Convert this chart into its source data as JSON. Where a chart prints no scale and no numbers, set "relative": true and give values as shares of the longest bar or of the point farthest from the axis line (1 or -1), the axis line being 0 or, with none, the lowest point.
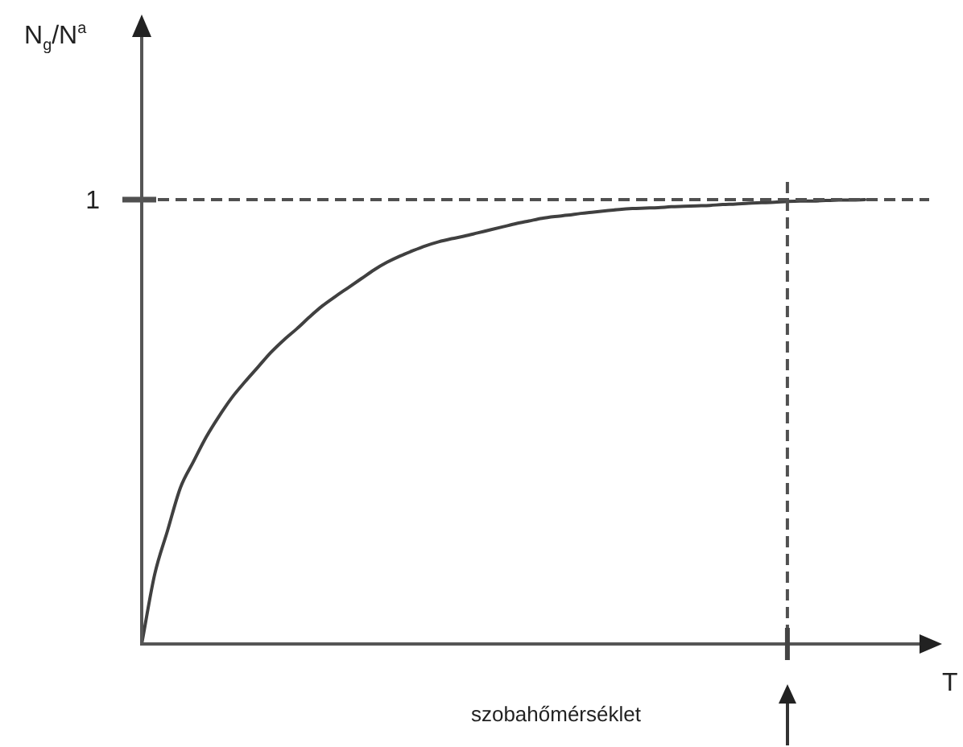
{
  "chart_data": {
    "type": "line",
    "relative": true,
    "xlabel": "T",
    "color": "#404040",
    "marker": "none",
    "line_style": "solid",
    "annotations": [
      "N$_{g}$/N$^{a}$",
      "szobahőmérséklet"
    ],
    "categories": [
      null,
      null,
      null,
      null,
      null,
      null,
      null,
      null,
      null,
      null,
      null,
      null,
      null,
      null,
      null,
      null,
      null,
      null,
      null,
      null,
      null,
      null,
      null,
      null,
      null,
      null,
      null,
      null,
      null,
      null,
      null,
      null,
      null,
      null,
      null,
      null,
      null,
      null,
      null,
      null,
      null,
      null,
      null,
      null,
      null,
      null,
      null,
      null,
      null,
      null,
      null,
      null,
      null,
      null,
      null,
      null,
      null
    ],
    "values": [
      0,
      0.156,
      0.255,
      0.352,
      0.41,
      0.466,
      0.513,
      0.555,
      0.59,
      0.623,
      0.656,
      0.684,
      0.709,
      0.736,
      0.761,
      0.782,
      0.802,
      0.822,
      0.842,
      0.859,
      0.873,
      0.885,
      0.896,
      0.905,
      0.912,
      0.918,
      0.925,
      0.932,
      0.939,
      0.946,
      0.952,
      0.958,
      0.962,
      0.965,
      0.969,
      0.972,
      0.975,
      0.978,
      0.98,
      0.981,
      0.982,
      0.984,
      0.985,
      0.986,
      0.987,
      0.989,
      0.99,
      0.992,
      0.993,
      0.994,
      0.996,
      0.997,
      0.997,
      0.998,
      0.999,
      0.999,
      1
    ],
    "ref_lines": [
      {
        "axis": "y",
        "value": 1,
        "label": "1",
        "line_style": "dashed",
        "color": "#505050"
      }
    ]
  }
}
